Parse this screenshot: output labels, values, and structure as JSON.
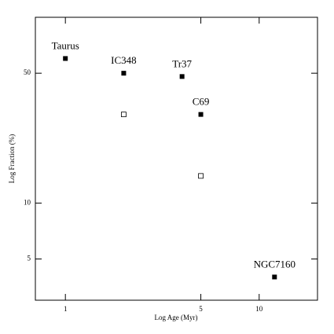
{
  "chart_data": {
    "type": "scatter",
    "x_label": "Log Age (Myr)",
    "y_label": "Log Fraction (%)",
    "xlog": true,
    "ylog": true,
    "xlim": [
      0.7,
      20
    ],
    "ylim": [
      3,
      100
    ],
    "xticks": [
      1,
      5,
      10
    ],
    "yticks": [
      5,
      10,
      50
    ],
    "series": [
      {
        "marker": "filled",
        "color": "#000000",
        "x": [
          1,
          2,
          4,
          5,
          12
        ],
        "values": [
          60,
          50,
          48,
          30,
          4
        ],
        "labels": [
          "Taurus",
          "IC348",
          "Tr37",
          "C69",
          "NGC7160"
        ]
      },
      {
        "marker": "open",
        "color": "#000000",
        "x": [
          2,
          5
        ],
        "values": [
          30,
          14
        ]
      }
    ]
  }
}
